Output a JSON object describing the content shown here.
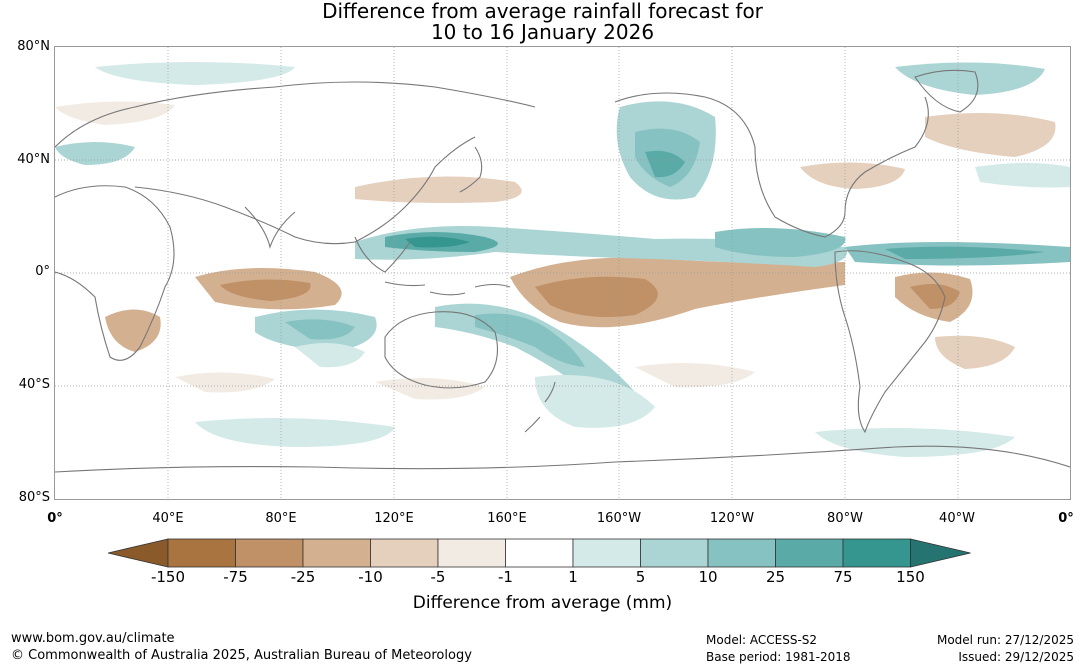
{
  "title": {
    "line1": "Difference from average rainfall forecast for",
    "line2": "10 to 16 January 2026"
  },
  "map": {
    "lat_labels": [
      "80°N",
      "40°N",
      "0°",
      "40°S",
      "80°S"
    ],
    "lon_labels": [
      "0°",
      "40°E",
      "80°E",
      "120°E",
      "160°E",
      "160°W",
      "120°W",
      "80°W",
      "40°W",
      "0°"
    ]
  },
  "legend": {
    "ticks": [
      "-150",
      "-75",
      "-25",
      "-10",
      "-5",
      "-1",
      "1",
      "5",
      "10",
      "25",
      "75",
      "150"
    ],
    "colors": [
      "#8a5a2b",
      "#aa7440",
      "#c09067",
      "#d3b090",
      "#e5cfbd",
      "#f2ebe3",
      "#ffffff",
      "#d4eae8",
      "#aad5d4",
      "#86c2c1",
      "#5aaba8",
      "#35958f",
      "#267471"
    ],
    "title": "Difference from average (mm)"
  },
  "footer": {
    "website": "www.bom.gov.au/climate",
    "copyright": "© Commonwealth of Australia 2025, Australian Bureau of Meteorology",
    "model": "Model: ACCESS-S2",
    "base_period": "Base period: 1981-2018",
    "model_run": "Model run: 27/12/2025",
    "issued": "Issued: 29/12/2025"
  }
}
